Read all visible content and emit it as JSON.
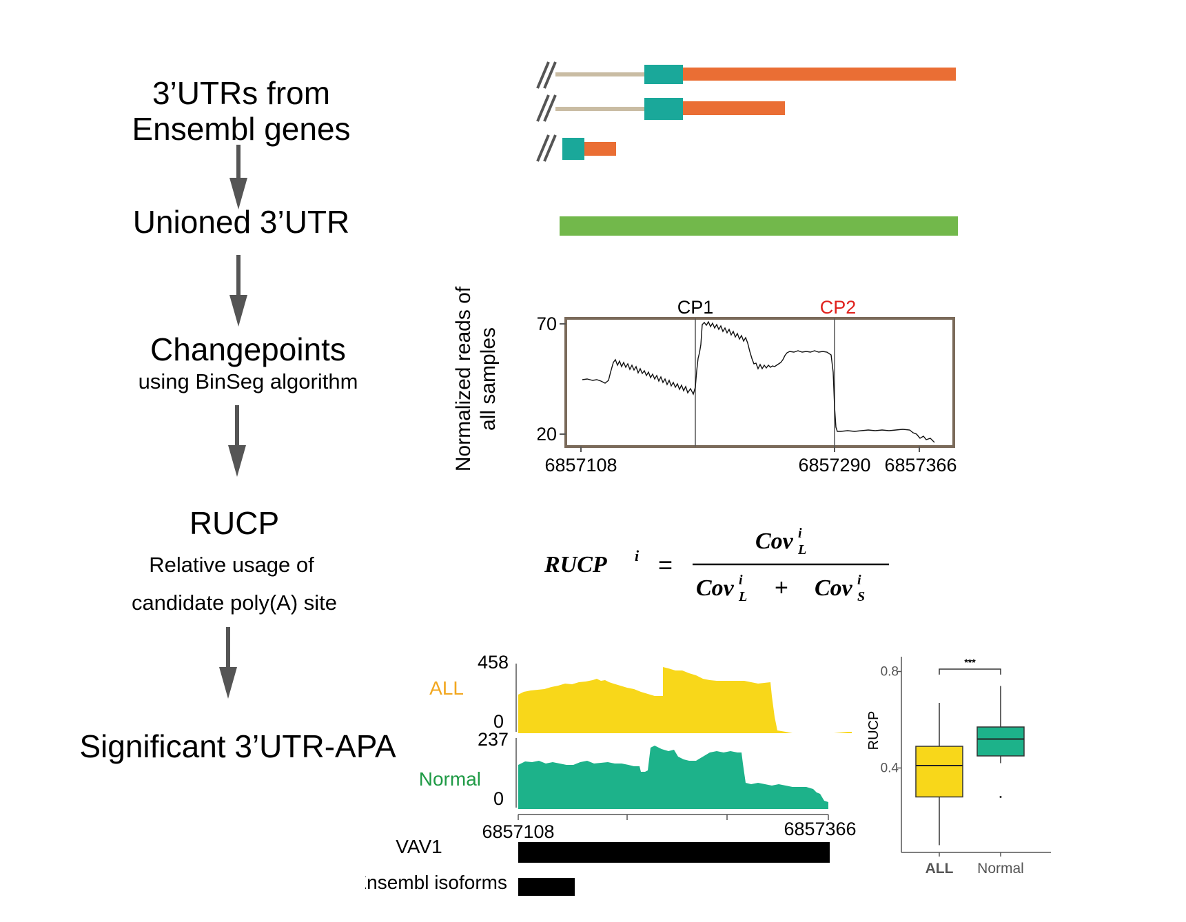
{
  "steps": [
    {
      "title_line1": "3’UTRs from",
      "title_line2": "Ensembl genes"
    },
    {
      "title": "Unioned 3’UTR"
    },
    {
      "title": "Changepoints",
      "subtitle": "using BinSeg algorithm"
    },
    {
      "title": "RUCP",
      "subtitle_line1": "Relative usage of",
      "subtitle_line2": "candidate poly(A) site"
    },
    {
      "title": "Significant 3’UTR-APA"
    }
  ],
  "colors": {
    "intron_line": "#c9bca3",
    "cds_teal": "#1aa89a",
    "utr_orange": "#ea6e34",
    "union_green": "#72b84b",
    "frame_brown": "#7a6a5a",
    "cp2_red": "#e0211c",
    "all_yellow": "#f8d71a",
    "all_label": "#f2a71f",
    "normal_green": "#1db28a",
    "normal_label": "#1f9a45",
    "arrow_gray": "#555555"
  },
  "coverage_plot": {
    "ylabel_line1": "Normalized reads of",
    "ylabel_line2": "all samples",
    "yticks": [
      "70",
      "20"
    ],
    "xticks": [
      "6857108",
      "6857290",
      "6857366"
    ],
    "cp1_label": "CP1",
    "cp2_label": "CP2"
  },
  "formula": {
    "lhs": "RUCP",
    "lhs_sup": "i",
    "equals": "=",
    "numerator": "Cov",
    "plus": "+",
    "sup": "i",
    "sub_long": "L",
    "sub_short": "S"
  },
  "tracks": {
    "all_label": "ALL",
    "all_max": "458",
    "all_min": "0",
    "normal_label": "Normal",
    "normal_max": "237",
    "normal_min": "0",
    "x_start": "6857108",
    "x_end": "6857366",
    "gene_label": "VAV1",
    "isoforms_label": "Ensembl isoforms"
  },
  "chart_data": {
    "type": "box",
    "ylabel": "RUCP",
    "yticks": [
      "0.8",
      "0.4"
    ],
    "ylim": [
      0.05,
      0.85
    ],
    "categories": [
      "ALL",
      "Normal"
    ],
    "significance": "***",
    "boxes": [
      {
        "name": "ALL",
        "whisker_low": 0.08,
        "q1": 0.28,
        "median": 0.41,
        "q3": 0.49,
        "whisker_high": 0.67,
        "outliers": []
      },
      {
        "name": "Normal",
        "whisker_low": 0.42,
        "q1": 0.45,
        "median": 0.52,
        "q3": 0.57,
        "whisker_high": 0.74,
        "outliers": [
          0.28
        ]
      }
    ],
    "box_colors": [
      "#f8d71a",
      "#1db28a"
    ]
  }
}
